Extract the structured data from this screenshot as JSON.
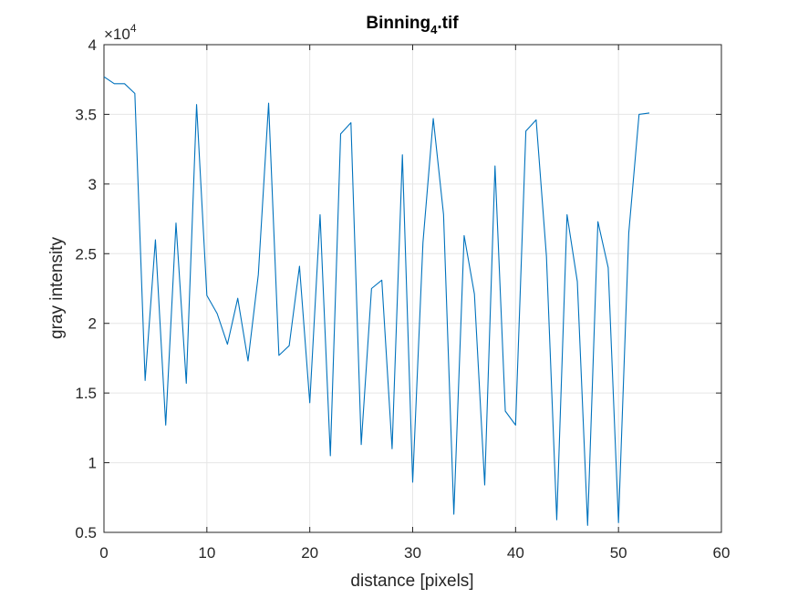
{
  "chart_data": {
    "type": "line",
    "title": {
      "main": "Binning",
      "subscript": "4",
      "suffix": ".tif"
    },
    "xlabel": "distance [pixels]",
    "ylabel": "gray intensity",
    "xlim": [
      0,
      60
    ],
    "ylim": [
      0.5,
      4
    ],
    "x_ticks": [
      "0",
      "10",
      "20",
      "30",
      "40",
      "50",
      "60"
    ],
    "y_ticks": [
      "0.5",
      "1",
      "1.5",
      "2",
      "2.5",
      "3",
      "3.5",
      "4"
    ],
    "y_scale_exponent": {
      "base": "×10",
      "power": "4"
    },
    "grid": true,
    "line_color": "#0072bd",
    "series": [
      {
        "x": [
          0,
          1,
          2,
          3,
          4,
          5,
          6,
          7,
          8,
          9,
          10,
          11,
          12,
          13,
          14,
          15,
          16,
          17,
          18,
          19,
          20,
          21,
          22,
          23,
          24,
          25,
          26,
          27,
          28,
          29,
          30,
          31,
          32,
          33,
          34,
          35,
          36,
          37,
          38,
          39,
          40,
          41,
          42,
          43,
          44,
          45,
          46,
          47,
          48,
          49,
          50,
          51,
          52,
          53
        ],
        "y": [
          3.77,
          3.72,
          3.72,
          3.65,
          1.59,
          2.6,
          1.27,
          2.72,
          1.57,
          3.57,
          2.2,
          2.07,
          1.85,
          2.18,
          1.73,
          2.35,
          3.58,
          1.77,
          1.84,
          2.41,
          1.43,
          2.78,
          1.05,
          3.36,
          3.44,
          1.13,
          2.25,
          2.31,
          1.1,
          3.21,
          0.86,
          2.58,
          3.47,
          2.78,
          0.63,
          2.63,
          2.21,
          0.84,
          3.13,
          1.37,
          1.27,
          3.38,
          3.46,
          2.48,
          0.59,
          2.78,
          2.3,
          0.55,
          2.73,
          2.4,
          0.57,
          2.65,
          3.5,
          3.51
        ]
      }
    ]
  }
}
